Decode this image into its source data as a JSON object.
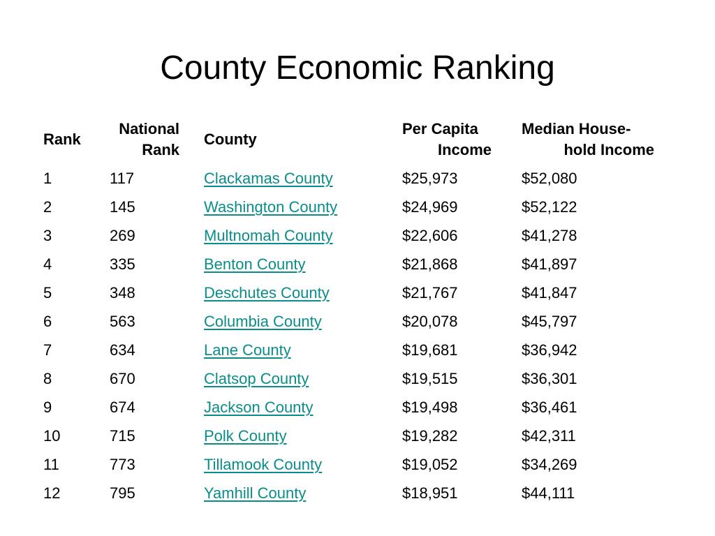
{
  "slide": {
    "title": "County Economic Ranking"
  },
  "table": {
    "headers": {
      "rank": "Rank",
      "national_rank_line1": "National",
      "national_rank_line2": "Rank",
      "county": "County",
      "per_capita_line1": "Per Capita",
      "per_capita_line2": "Income",
      "median_line1": "Median House-",
      "median_line2": "hold Income"
    },
    "rows": [
      {
        "rank": "1",
        "national_rank": "117",
        "county": "Clackamas County",
        "per_capita_income": "$25,973",
        "median_household_income": "$52,080"
      },
      {
        "rank": "2",
        "national_rank": "145",
        "county": "Washington County",
        "per_capita_income": "$24,969",
        "median_household_income": "$52,122"
      },
      {
        "rank": "3",
        "national_rank": "269",
        "county": "Multnomah County",
        "per_capita_income": "$22,606",
        "median_household_income": "$41,278"
      },
      {
        "rank": "4",
        "national_rank": "335",
        "county": "Benton County",
        "per_capita_income": "$21,868",
        "median_household_income": "$41,897"
      },
      {
        "rank": "5",
        "national_rank": "348",
        "county": "Deschutes County",
        "per_capita_income": "$21,767",
        "median_household_income": "$41,847"
      },
      {
        "rank": "6",
        "national_rank": "563",
        "county": "Columbia County",
        "per_capita_income": "$20,078",
        "median_household_income": "$45,797"
      },
      {
        "rank": "7",
        "national_rank": "634",
        "county": "Lane County",
        "per_capita_income": "$19,681",
        "median_household_income": "$36,942"
      },
      {
        "rank": "8",
        "national_rank": "670",
        "county": "Clatsop County",
        "per_capita_income": "$19,515",
        "median_household_income": "$36,301"
      },
      {
        "rank": "9",
        "national_rank": "674",
        "county": "Jackson County",
        "per_capita_income": "$19,498",
        "median_household_income": "$36,461"
      },
      {
        "rank": "10",
        "national_rank": "715",
        "county": "Polk County",
        "per_capita_income": "$19,282",
        "median_household_income": "$42,311"
      },
      {
        "rank": "11",
        "national_rank": "773",
        "county": "Tillamook County",
        "per_capita_income": "$19,052",
        "median_household_income": "$34,269"
      },
      {
        "rank": "12",
        "national_rank": "795",
        "county": "Yamhill County",
        "per_capita_income": "$18,951",
        "median_household_income": "$44,111"
      }
    ],
    "link_color": "#0b8c8c"
  }
}
